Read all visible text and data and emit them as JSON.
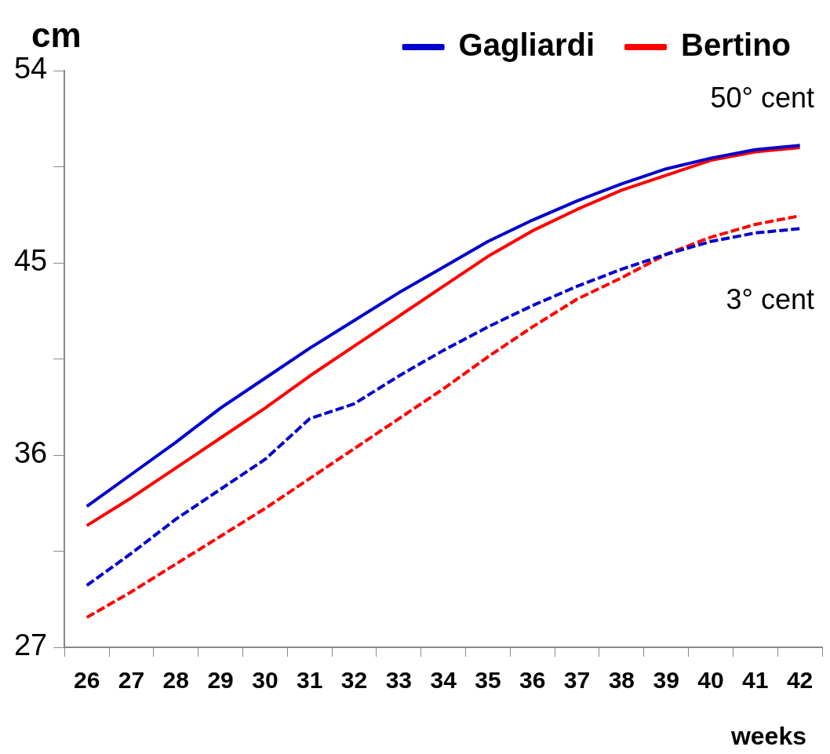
{
  "chart_data": {
    "type": "line",
    "xlabel": "weeks",
    "ylabel": "cm",
    "categories": [
      "26",
      "27",
      "28",
      "29",
      "30",
      "31",
      "32",
      "33",
      "34",
      "35",
      "36",
      "37",
      "38",
      "39",
      "40",
      "41",
      "42"
    ],
    "series": [
      {
        "name": "Gagliardi",
        "color": "#0000cc",
        "values": [
          33.6,
          35.1,
          36.6,
          38.2,
          39.6,
          41.0,
          42.3,
          43.6,
          44.8,
          46.0,
          47.0,
          47.9,
          48.7,
          49.4,
          49.9,
          50.3,
          50.5
        ]
      },
      {
        "name": "Bertino",
        "color": "#ff0000",
        "values": [
          32.7,
          34.0,
          35.4,
          36.8,
          38.2,
          39.7,
          41.1,
          42.5,
          43.9,
          45.3,
          46.5,
          47.5,
          48.4,
          49.1,
          49.8,
          50.2,
          50.4
        ]
      },
      {
        "color": "#0000cc",
        "line_style": "dashed",
        "values": [
          29.9,
          31.4,
          33.0,
          34.4,
          35.8,
          37.7,
          38.4,
          39.7,
          40.9,
          42.0,
          43.0,
          43.9,
          44.7,
          45.4,
          46.0,
          46.4,
          46.6
        ]
      },
      {
        "color": "#ff0000",
        "line_style": "dashed",
        "values": [
          28.4,
          29.6,
          30.9,
          32.2,
          33.5,
          34.9,
          36.3,
          37.7,
          39.1,
          40.6,
          42.0,
          43.3,
          44.3,
          45.4,
          46.2,
          46.8,
          47.2
        ]
      }
    ],
    "ylim": [
      27,
      54
    ],
    "yticks": [
      27,
      {
        "value": 31.5,
        "label": null
      },
      36,
      {
        "value": 40.5,
        "label": null
      },
      45,
      {
        "value": 49.5,
        "label": null
      },
      54
    ],
    "annotations": [
      "50° cent",
      "3° cent"
    ],
    "legend": "top",
    "grid": false,
    "marker": "none",
    "line_style": "solid"
  }
}
